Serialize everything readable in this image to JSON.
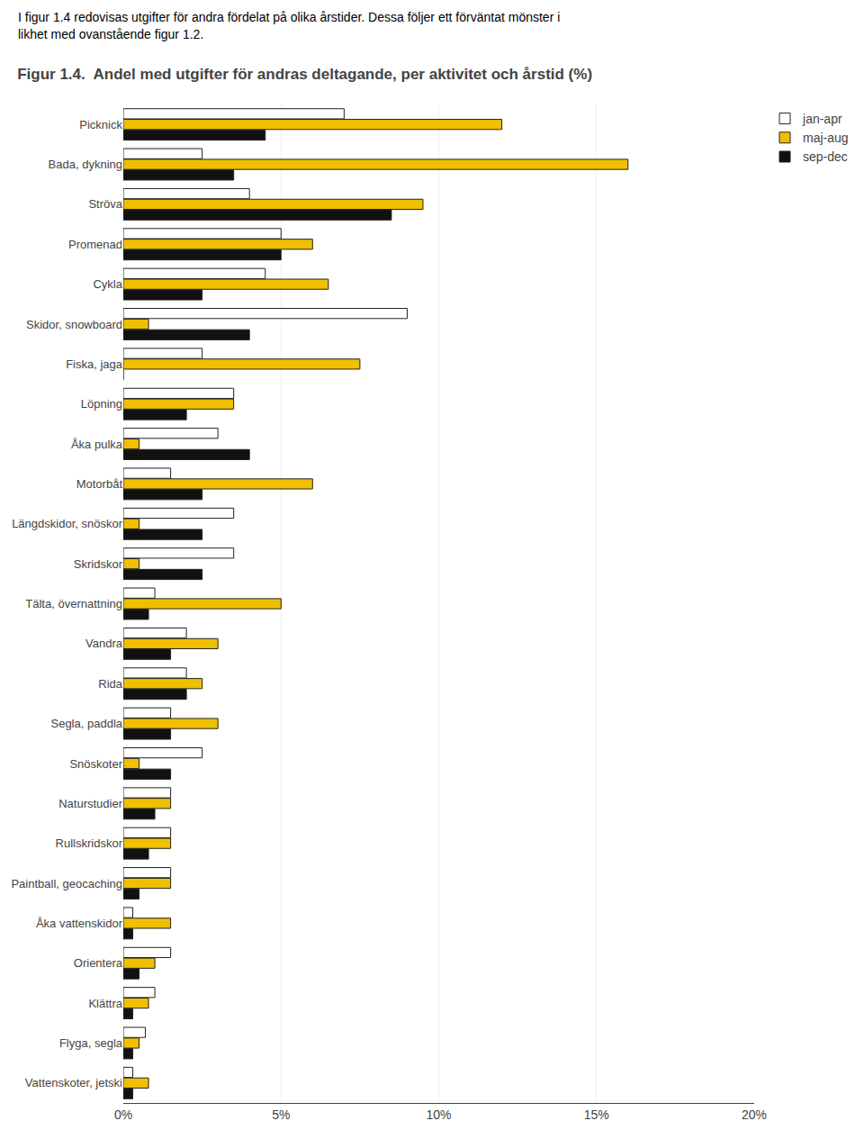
{
  "chart_data": {
    "type": "bar",
    "orientation": "horizontal",
    "title": "Figur 1.4.  Andel med utgifter för andras deltagande, per aktivitet och årstid (%)",
    "annotations": [
      "I figur 1.4 redovisas utgifter för andra fördelat på olika årstider. Dessa följer ett förväntat mönster i",
      "likhet med ovanstående figur 1.2."
    ],
    "categories": [
      "Picknick",
      "Bada, dykning",
      "Ströva",
      "Promenad",
      "Cykla",
      "Skidor, snowboard",
      "Fiska, jaga",
      "Löpning",
      "Åka pulka",
      "Motorbåt",
      "Längdskidor, snöskor",
      "Skridskor",
      "Tälta, övernattning",
      "Vandra",
      "Rida",
      "Segla, paddla",
      "Snöskoter",
      "Naturstudier",
      "Rullskridskor",
      "Paintball, geocaching",
      "Åka vattenskidor",
      "Orientera",
      "Klättra",
      "Flyga, segla",
      "Vattenskoter, jetski"
    ],
    "series": [
      {
        "name": "jan-apr",
        "color": "#ffffff",
        "values": [
          7.0,
          2.5,
          4.0,
          5.0,
          4.5,
          9.0,
          2.5,
          3.5,
          3.0,
          1.5,
          3.5,
          3.5,
          1.0,
          2.0,
          2.0,
          1.5,
          2.5,
          1.5,
          1.5,
          1.5,
          0.3,
          1.5,
          1.0,
          0.7,
          0.3
        ]
      },
      {
        "name": "maj-aug",
        "color": "#f0c000",
        "values": [
          12.0,
          16.0,
          9.5,
          6.0,
          6.5,
          0.8,
          7.5,
          3.5,
          0.5,
          6.0,
          0.5,
          0.5,
          5.0,
          3.0,
          2.5,
          3.0,
          0.5,
          1.5,
          1.5,
          1.5,
          1.5,
          1.0,
          0.8,
          0.5,
          0.8
        ]
      },
      {
        "name": "sep-dec",
        "color": "#111111",
        "values": [
          4.5,
          3.5,
          8.5,
          5.0,
          2.5,
          4.0,
          0.0,
          2.0,
          4.0,
          2.5,
          2.5,
          2.5,
          0.8,
          1.5,
          2.0,
          1.5,
          1.5,
          1.0,
          0.8,
          0.5,
          0.3,
          0.5,
          0.3,
          0.3,
          0.3
        ]
      }
    ],
    "xlim": [
      0,
      20
    ],
    "xticks": [
      {
        "value": 0,
        "label": "0%"
      },
      {
        "value": 5,
        "label": "5%"
      },
      {
        "value": 10,
        "label": "10%"
      },
      {
        "value": 15,
        "label": "15%"
      },
      {
        "value": 20,
        "label": "20%"
      }
    ],
    "grid": true,
    "legend": "top right"
  }
}
